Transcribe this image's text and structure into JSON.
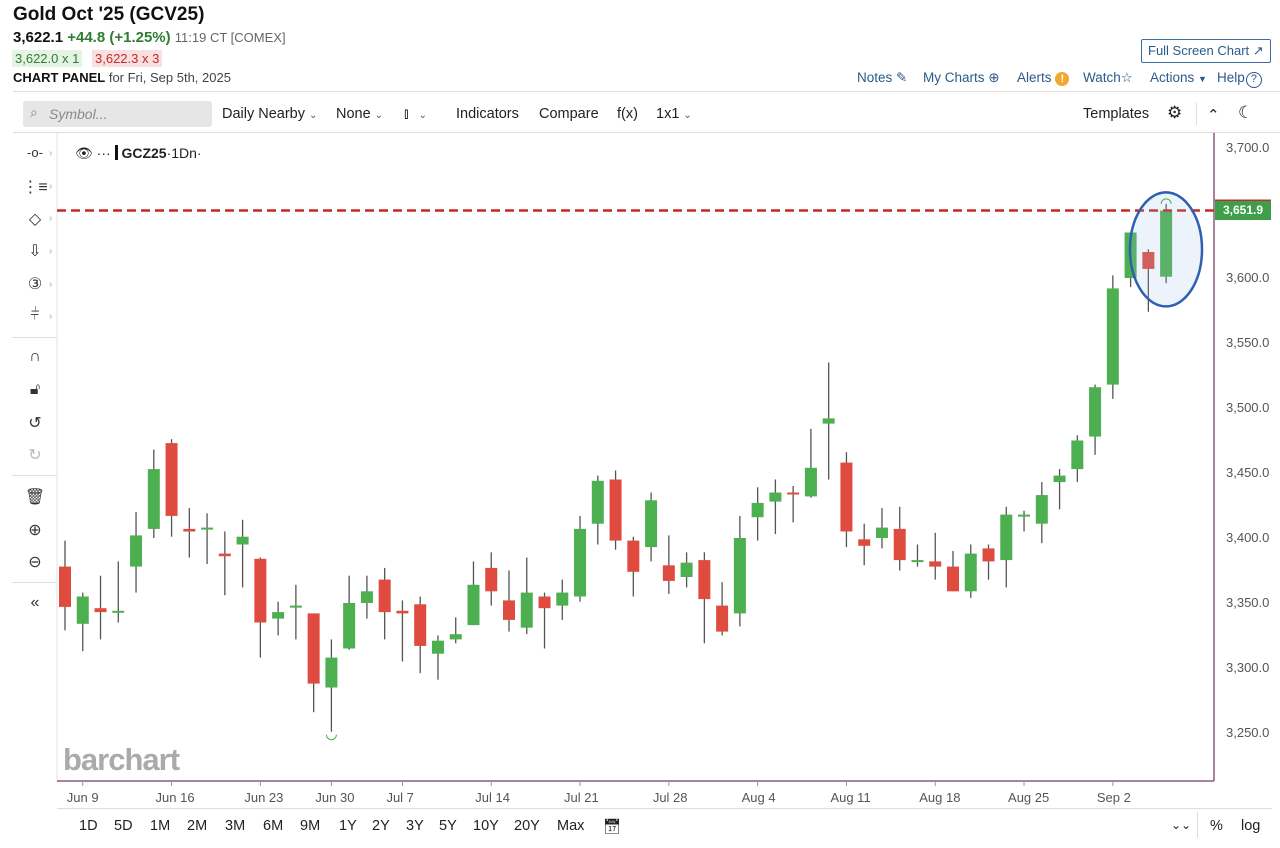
{
  "header": {
    "title": "Gold Oct '25 (GCV25)",
    "last": "3,622.1",
    "change": "+44.8 (+1.25%)",
    "time": "11:19 CT [COMEX]",
    "bid": "3,622.0 x 1",
    "ask": "3,622.3 x 3",
    "panel_label": "CHART PANEL",
    "panel_date": "for Fri, Sep 5th, 2025",
    "full_screen": "Full Screen Chart ↗",
    "links": {
      "notes": "Notes",
      "my_charts": "My Charts",
      "alerts": "Alerts",
      "watch": "Watch",
      "actions": "Actions",
      "help": "Help"
    }
  },
  "toolbar": {
    "search_placeholder": "Symbol...",
    "period": "Daily Nearby",
    "overlay": "None",
    "chart_type_icon": "candlestick-icon",
    "indicators": "Indicators",
    "compare": "Compare",
    "fx": "f(x)",
    "layout": "1x1",
    "templates": "Templates"
  },
  "left_tools": [
    "crosshair",
    "trendline-list",
    "shapes",
    "arrow-down",
    "counter-3",
    "fibonacci",
    "magnet",
    "unlock",
    "undo",
    "redo",
    "trash",
    "zoom-in",
    "zoom-out",
    "collapse"
  ],
  "legend": {
    "symbol": "GCZ25",
    "interval": "·1Dn·"
  },
  "logo": "barchart",
  "range_buttons": [
    "1D",
    "5D",
    "1M",
    "2M",
    "3M",
    "6M",
    "9M",
    "1Y",
    "2Y",
    "3Y",
    "5Y",
    "10Y",
    "20Y",
    "Max"
  ],
  "bottom_right": {
    "percent": "%",
    "log": "log"
  },
  "colors": {
    "up": "#4caf50",
    "down": "#e04b3f",
    "ref_line": "#c62828",
    "highlight": "#2f5fb0",
    "axis_border": "#8a5a80"
  },
  "chart_data": {
    "type": "candlestick",
    "symbol": "GCZ25",
    "yticks": [
      "3,700.0",
      "3,650.0",
      "3,600.0",
      "3,550.0",
      "3,500.0",
      "3,450.0",
      "3,400.0",
      "3,350.0",
      "3,300.0",
      "3,250.0"
    ],
    "ytick_values": [
      3700,
      3650,
      3600,
      3550,
      3500,
      3450,
      3400,
      3350,
      3300,
      3250
    ],
    "ylim": [
      3212,
      3712
    ],
    "xticks": [
      "Jun 9",
      "Jun 16",
      "Jun 23",
      "Jun 30",
      "Jul 7",
      "Jul 14",
      "Jul 21",
      "Jul 28",
      "Aug 4",
      "Aug 11",
      "Aug 18",
      "Aug 25",
      "Sep 2"
    ],
    "last_price_label": "3,651.9",
    "last_price": 3651.9,
    "candles_columns": [
      "date",
      "open",
      "high",
      "low",
      "close"
    ],
    "candles": [
      [
        "Jun 6",
        3378,
        3398,
        3329,
        3347
      ],
      [
        "Jun 9",
        3334,
        3358,
        3313,
        3355
      ],
      [
        "Jun 10",
        3346,
        3371,
        3322,
        3343
      ],
      [
        "Jun 11",
        3344,
        3382,
        3335,
        3344
      ],
      [
        "Jun 12",
        3378,
        3420,
        3358,
        3402
      ],
      [
        "Jun 13",
        3407,
        3468,
        3400,
        3453
      ],
      [
        "Jun 16",
        3473,
        3476,
        3401,
        3417
      ],
      [
        "Jun 17",
        3407,
        3423,
        3385,
        3405
      ],
      [
        "Jun 18",
        3408,
        3419,
        3380,
        3408
      ],
      [
        "Jun 19",
        3388,
        3405,
        3356,
        3386
      ],
      [
        "Jun 20",
        3395,
        3414,
        3362,
        3401
      ],
      [
        "Jun 23",
        3384,
        3385,
        3308,
        3335
      ],
      [
        "Jun 24",
        3338,
        3351,
        3325,
        3343
      ],
      [
        "Jun 25",
        3348,
        3364,
        3322,
        3348
      ],
      [
        "Jun 26",
        3342,
        3342,
        3266,
        3288
      ],
      [
        "Jun 27",
        3285,
        3322,
        3251,
        3308
      ],
      [
        "Jun 30",
        3315,
        3371,
        3314,
        3350
      ],
      [
        "Jul 1",
        3350,
        3371,
        3338,
        3359
      ],
      [
        "Jul 2",
        3368,
        3377,
        3322,
        3343
      ],
      [
        "Jul 3",
        3344,
        3352,
        3305,
        3342
      ],
      [
        "Jul 7",
        3349,
        3355,
        3296,
        3317
      ],
      [
        "Jul 8",
        3311,
        3325,
        3291,
        3321
      ],
      [
        "Jul 9",
        3322,
        3339,
        3319,
        3326
      ],
      [
        "Jul 10",
        3333,
        3382,
        3333,
        3364
      ],
      [
        "Jul 11",
        3377,
        3389,
        3348,
        3359
      ],
      [
        "Jul 14",
        3352,
        3375,
        3328,
        3337
      ],
      [
        "Jul 15",
        3331,
        3385,
        3326,
        3358
      ],
      [
        "Jul 16",
        3355,
        3358,
        3315,
        3346
      ],
      [
        "Jul 17",
        3348,
        3368,
        3337,
        3358
      ],
      [
        "Jul 18",
        3355,
        3417,
        3351,
        3407
      ],
      [
        "Jul 21",
        3411,
        3448,
        3395,
        3444
      ],
      [
        "Jul 22",
        3445,
        3452,
        3391,
        3398
      ],
      [
        "Jul 23",
        3398,
        3401,
        3355,
        3374
      ],
      [
        "Jul 24",
        3393,
        3435,
        3382,
        3429
      ],
      [
        "Jul 25",
        3379,
        3402,
        3357,
        3367
      ],
      [
        "Jul 28",
        3370,
        3389,
        3362,
        3381
      ],
      [
        "Jul 29",
        3383,
        3389,
        3319,
        3353
      ],
      [
        "Jul 30",
        3348,
        3366,
        3325,
        3328
      ],
      [
        "Jul 31",
        3342,
        3417,
        3332,
        3400
      ],
      [
        "Aug 1",
        3416,
        3439,
        3398,
        3427
      ],
      [
        "Aug 4",
        3428,
        3445,
        3403,
        3435
      ],
      [
        "Aug 5",
        3435,
        3440,
        3412,
        3434
      ],
      [
        "Aug 6",
        3432,
        3484,
        3431,
        3454
      ],
      [
        "Aug 7",
        3488,
        3535,
        3445,
        3492
      ],
      [
        "Aug 8",
        3458,
        3466,
        3393,
        3405
      ],
      [
        "Aug 11",
        3399,
        3411,
        3379,
        3394
      ],
      [
        "Aug 12",
        3400,
        3423,
        3392,
        3408
      ],
      [
        "Aug 13",
        3407,
        3424,
        3375,
        3383
      ],
      [
        "Aug 14",
        3383,
        3395,
        3378,
        3383
      ],
      [
        "Aug 15",
        3382,
        3404,
        3368,
        3378
      ],
      [
        "Aug 18",
        3378,
        3390,
        3359,
        3359
      ],
      [
        "Aug 19",
        3359,
        3395,
        3354,
        3388
      ],
      [
        "Aug 20",
        3392,
        3395,
        3368,
        3382
      ],
      [
        "Aug 21",
        3383,
        3424,
        3362,
        3418
      ],
      [
        "Aug 22",
        3418,
        3421,
        3405,
        3418
      ],
      [
        "Aug 25",
        3411,
        3443,
        3396,
        3433
      ],
      [
        "Aug 26",
        3443,
        3453,
        3422,
        3448
      ],
      [
        "Aug 27",
        3453,
        3479,
        3443,
        3475
      ],
      [
        "Aug 28",
        3478,
        3518,
        3464,
        3516
      ],
      [
        "Aug 29",
        3518,
        3602,
        3507,
        3592
      ],
      [
        "Sep 2",
        3600,
        3635,
        3593,
        3635
      ],
      [
        "Sep 3",
        3620,
        3622,
        3574,
        3607
      ],
      [
        "Sep 4",
        3601,
        3657,
        3596,
        3651.9
      ]
    ]
  }
}
